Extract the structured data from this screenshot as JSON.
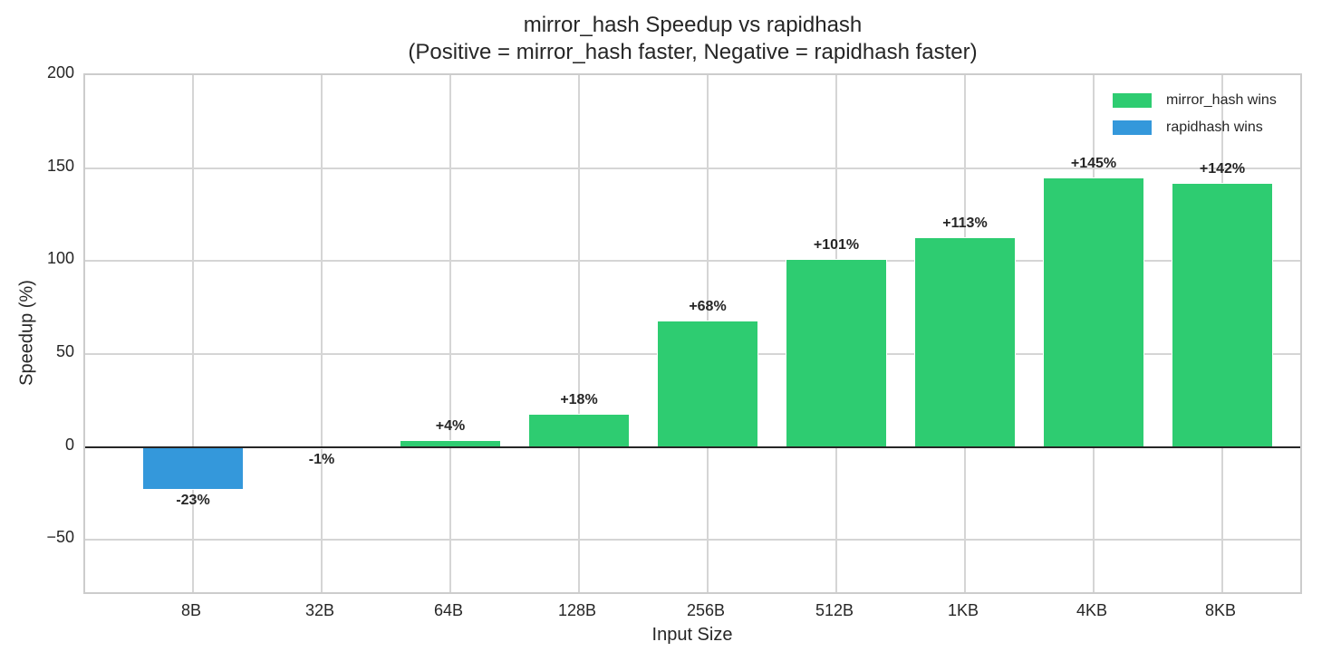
{
  "chart_data": {
    "type": "bar",
    "title": "mirror_hash Speedup vs rapidhash",
    "subtitle": "(Positive = mirror_hash faster, Negative = rapidhash faster)",
    "xlabel": "Input Size",
    "ylabel": "Speedup (%)",
    "ylim": [
      -80,
      200
    ],
    "yticks": [
      -50,
      0,
      50,
      100,
      150,
      200
    ],
    "ytick_labels": [
      "−50",
      "0",
      "50",
      "100",
      "150",
      "200"
    ],
    "grid": true,
    "legend_position": "upper right",
    "categories": [
      "8B",
      "32B",
      "64B",
      "128B",
      "256B",
      "512B",
      "1KB",
      "4KB",
      "8KB"
    ],
    "values": [
      -22.5,
      -0.8,
      3.5,
      17.5,
      67.5,
      100.5,
      112.5,
      144.5,
      141.5
    ],
    "data_labels": [
      "-23%",
      "-1%",
      "+4%",
      "+18%",
      "+68%",
      "+101%",
      "+113%",
      "+145%",
      "+142%"
    ],
    "series_colors": {
      "mirror_hash wins": "#2ecc71",
      "rapidhash wins": "#3498db"
    },
    "legend": [
      {
        "label": "mirror_hash wins",
        "color": "#2ecc71"
      },
      {
        "label": "rapidhash wins",
        "color": "#3498db"
      }
    ]
  }
}
